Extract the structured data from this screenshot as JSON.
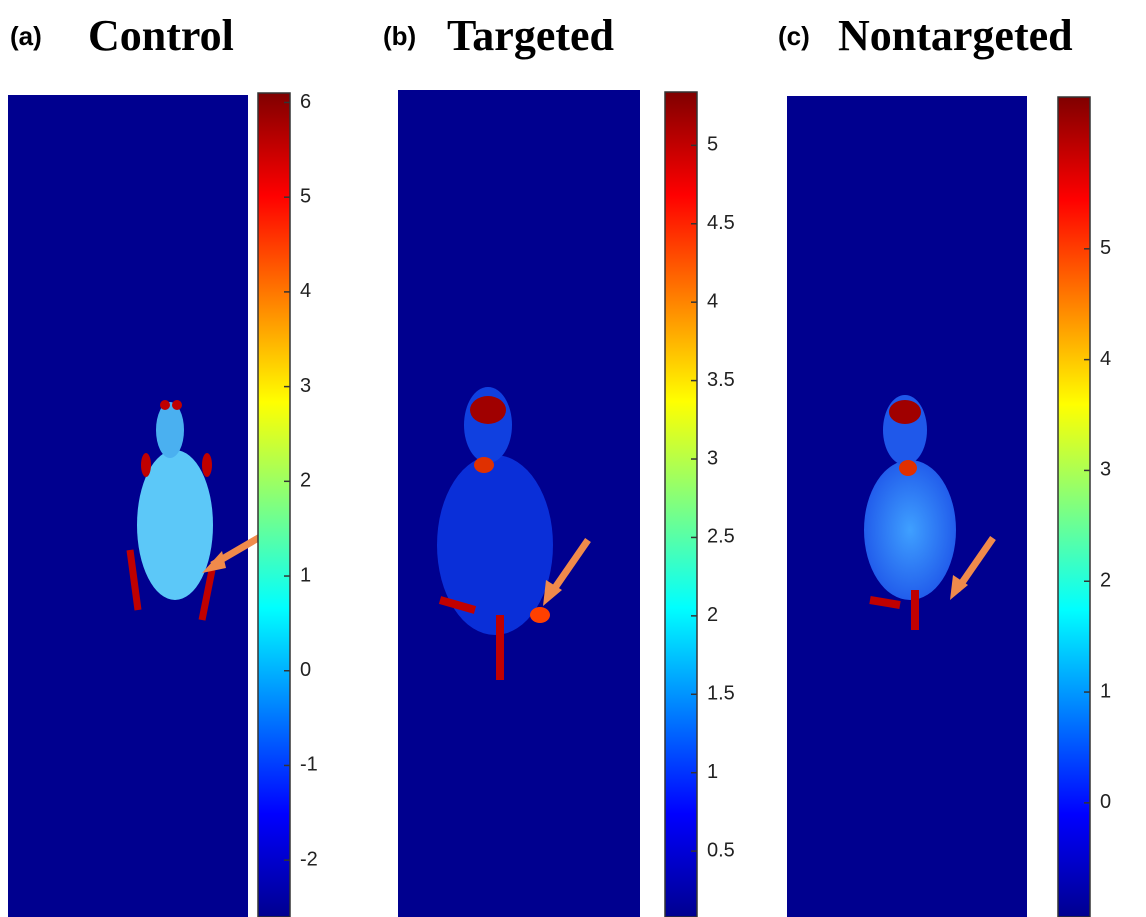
{
  "chart_data": [
    {
      "type": "heatmap",
      "panel_label": "(a)",
      "title": "Control",
      "colormap": "jet",
      "ylim": [
        -2.6,
        6.1
      ],
      "yticks": [
        -2,
        -1,
        0,
        1,
        2,
        3,
        4,
        5,
        6
      ]
    },
    {
      "type": "heatmap",
      "panel_label": "(b)",
      "title": "Targeted",
      "colormap": "jet",
      "ylim": [
        0.08,
        5.34
      ],
      "yticks": [
        0.5,
        1,
        1.5,
        2,
        2.5,
        3,
        3.5,
        4,
        4.5,
        5
      ]
    },
    {
      "type": "heatmap",
      "panel_label": "(c)",
      "title": "Nontargeted",
      "colormap": "jet",
      "ylim": [
        -1.03,
        6.37
      ],
      "yticks": [
        0,
        1,
        2,
        3,
        4,
        5
      ]
    }
  ]
}
